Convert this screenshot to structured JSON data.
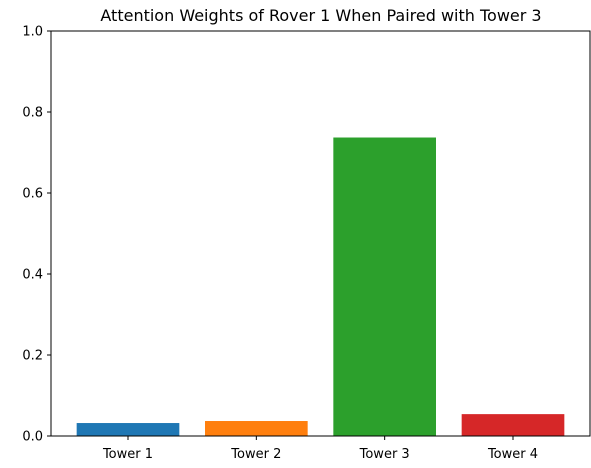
{
  "chart_data": {
    "type": "bar",
    "title": "Attention Weights of Rover 1 When Paired with Tower 3",
    "xlabel": "",
    "ylabel": "",
    "categories": [
      "Tower 1",
      "Tower 2",
      "Tower 3",
      "Tower 4"
    ],
    "values": [
      0.032,
      0.037,
      0.737,
      0.054
    ],
    "colors": [
      "#1f77b4",
      "#ff7f0e",
      "#2ca02c",
      "#d62728"
    ],
    "ylim": [
      0,
      1.0
    ],
    "yticks": [
      0.0,
      0.2,
      0.4,
      0.6,
      0.8,
      1.0
    ],
    "ytick_labels": [
      "0.0",
      "0.2",
      "0.4",
      "0.6",
      "0.8",
      "1.0"
    ],
    "grid": false,
    "legend": "none"
  }
}
